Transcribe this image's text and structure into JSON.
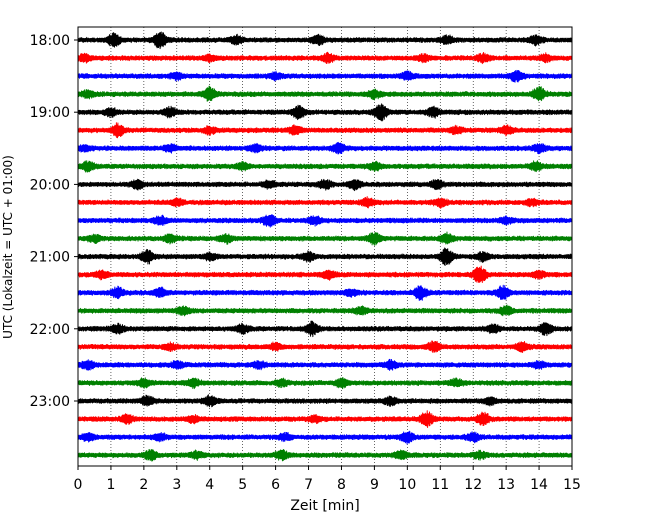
{
  "chart_data": {
    "type": "line",
    "title": "",
    "xlabel": "Zeit  [min]",
    "ylabel": "UTC (Lokalzeit = UTC + 01:00)",
    "xlim": [
      0,
      15
    ],
    "x_ticks": [
      0,
      1,
      2,
      3,
      4,
      5,
      6,
      7,
      8,
      9,
      10,
      11,
      12,
      13,
      14,
      15
    ],
    "x_tick_labels": [
      "0",
      "1",
      "2",
      "3",
      "4",
      "5",
      "6",
      "7",
      "8",
      "9",
      "10",
      "11",
      "12",
      "13",
      "14",
      "15"
    ],
    "y_tick_labels": [
      "18:00",
      "19:00",
      "20:00",
      "21:00",
      "22:00",
      "23:00"
    ],
    "grid": "vertical dotted lines at each minute",
    "trace_colors": [
      "#000000",
      "#ff0000",
      "#0000ff",
      "#008000"
    ],
    "traces": [
      {
        "start": "18:00",
        "color": "#000000",
        "bursts": [
          [
            1.1,
            0.8
          ],
          [
            2.5,
            1.0
          ],
          [
            4.8,
            0.5
          ],
          [
            7.3,
            0.6
          ],
          [
            11.2,
            0.5
          ],
          [
            13.9,
            0.6
          ]
        ]
      },
      {
        "start": "18:15",
        "color": "#ff0000",
        "bursts": [
          [
            0.2,
            0.4
          ],
          [
            4.0,
            0.4
          ],
          [
            7.6,
            0.5
          ],
          [
            10.5,
            0.4
          ],
          [
            12.3,
            0.5
          ],
          [
            14.2,
            0.4
          ]
        ]
      },
      {
        "start": "18:30",
        "color": "#0000ff",
        "bursts": [
          [
            3.0,
            0.4
          ],
          [
            6.0,
            0.4
          ],
          [
            10.0,
            0.5
          ],
          [
            13.3,
            0.6
          ]
        ]
      },
      {
        "start": "18:45",
        "color": "#008000",
        "bursts": [
          [
            0.3,
            0.4
          ],
          [
            4.0,
            0.8
          ],
          [
            9.0,
            0.5
          ],
          [
            14.0,
            0.8
          ]
        ]
      },
      {
        "start": "19:00",
        "color": "#000000",
        "bursts": [
          [
            1.0,
            0.5
          ],
          [
            2.8,
            0.6
          ],
          [
            6.7,
            0.8
          ],
          [
            9.2,
            1.0
          ],
          [
            10.8,
            0.6
          ]
        ]
      },
      {
        "start": "19:15",
        "color": "#ff0000",
        "bursts": [
          [
            1.2,
            0.8
          ],
          [
            4.0,
            0.4
          ],
          [
            6.6,
            0.5
          ],
          [
            11.5,
            0.4
          ],
          [
            13.0,
            0.5
          ]
        ]
      },
      {
        "start": "19:30",
        "color": "#0000ff",
        "bursts": [
          [
            0.2,
            0.3
          ],
          [
            2.8,
            0.4
          ],
          [
            5.4,
            0.4
          ],
          [
            7.9,
            0.6
          ],
          [
            14.0,
            0.5
          ]
        ]
      },
      {
        "start": "19:45",
        "color": "#008000",
        "bursts": [
          [
            0.3,
            0.6
          ],
          [
            5.0,
            0.4
          ],
          [
            9.0,
            0.5
          ],
          [
            13.9,
            0.5
          ]
        ]
      },
      {
        "start": "20:00",
        "color": "#000000",
        "bursts": [
          [
            1.8,
            0.5
          ],
          [
            5.8,
            0.4
          ],
          [
            7.5,
            0.5
          ],
          [
            8.4,
            0.6
          ],
          [
            10.9,
            0.5
          ]
        ]
      },
      {
        "start": "20:15",
        "color": "#ff0000",
        "bursts": [
          [
            3.0,
            0.4
          ],
          [
            8.8,
            0.5
          ],
          [
            11.0,
            0.5
          ],
          [
            13.8,
            0.4
          ]
        ]
      },
      {
        "start": "20:30",
        "color": "#0000ff",
        "bursts": [
          [
            2.5,
            0.5
          ],
          [
            5.8,
            0.8
          ],
          [
            7.2,
            0.5
          ],
          [
            13.0,
            0.4
          ]
        ]
      },
      {
        "start": "20:45",
        "color": "#008000",
        "bursts": [
          [
            0.5,
            0.4
          ],
          [
            2.8,
            0.5
          ],
          [
            4.5,
            0.5
          ],
          [
            9.0,
            0.7
          ],
          [
            11.2,
            0.6
          ]
        ]
      },
      {
        "start": "21:00",
        "color": "#000000",
        "bursts": [
          [
            2.1,
            0.8
          ],
          [
            4.0,
            0.4
          ],
          [
            7.0,
            0.5
          ],
          [
            11.2,
            1.1
          ],
          [
            12.3,
            0.5
          ]
        ]
      },
      {
        "start": "21:15",
        "color": "#ff0000",
        "bursts": [
          [
            0.7,
            0.4
          ],
          [
            7.6,
            0.5
          ],
          [
            12.2,
            1.0
          ],
          [
            14.0,
            0.4
          ]
        ]
      },
      {
        "start": "21:30",
        "color": "#0000ff",
        "bursts": [
          [
            1.2,
            0.6
          ],
          [
            2.5,
            0.5
          ],
          [
            8.3,
            0.4
          ],
          [
            10.4,
            0.8
          ],
          [
            12.9,
            0.8
          ]
        ]
      },
      {
        "start": "21:45",
        "color": "#008000",
        "bursts": [
          [
            3.2,
            0.5
          ],
          [
            8.6,
            0.4
          ],
          [
            13.0,
            0.5
          ]
        ]
      },
      {
        "start": "22:00",
        "color": "#000000",
        "bursts": [
          [
            1.2,
            0.5
          ],
          [
            5.0,
            0.5
          ],
          [
            7.1,
            0.8
          ],
          [
            12.6,
            0.5
          ],
          [
            14.2,
            0.7
          ]
        ]
      },
      {
        "start": "22:15",
        "color": "#ff0000",
        "bursts": [
          [
            2.8,
            0.4
          ],
          [
            6.0,
            0.4
          ],
          [
            10.8,
            0.6
          ],
          [
            13.5,
            0.5
          ]
        ]
      },
      {
        "start": "22:30",
        "color": "#0000ff",
        "bursts": [
          [
            0.3,
            0.5
          ],
          [
            3.0,
            0.4
          ],
          [
            5.5,
            0.4
          ],
          [
            9.5,
            0.5
          ],
          [
            14.0,
            0.4
          ]
        ]
      },
      {
        "start": "22:45",
        "color": "#008000",
        "bursts": [
          [
            2.0,
            0.5
          ],
          [
            3.5,
            0.5
          ],
          [
            6.2,
            0.4
          ],
          [
            8.0,
            0.5
          ],
          [
            11.5,
            0.4
          ]
        ]
      },
      {
        "start": "23:00",
        "color": "#000000",
        "bursts": [
          [
            2.1,
            0.6
          ],
          [
            4.0,
            0.6
          ],
          [
            9.5,
            0.5
          ],
          [
            12.5,
            0.4
          ]
        ]
      },
      {
        "start": "23:15",
        "color": "#ff0000",
        "bursts": [
          [
            1.5,
            0.5
          ],
          [
            3.5,
            0.4
          ],
          [
            7.2,
            0.4
          ],
          [
            10.6,
            0.9
          ],
          [
            12.3,
            0.8
          ]
        ]
      },
      {
        "start": "23:30",
        "color": "#0000ff",
        "bursts": [
          [
            0.3,
            0.5
          ],
          [
            2.5,
            0.4
          ],
          [
            6.3,
            0.4
          ],
          [
            10.0,
            0.7
          ],
          [
            12.0,
            0.5
          ]
        ]
      },
      {
        "start": "23:45",
        "color": "#008000",
        "bursts": [
          [
            2.2,
            0.6
          ],
          [
            3.6,
            0.4
          ],
          [
            6.2,
            0.6
          ],
          [
            9.8,
            0.5
          ],
          [
            12.2,
            0.4
          ]
        ]
      }
    ]
  }
}
